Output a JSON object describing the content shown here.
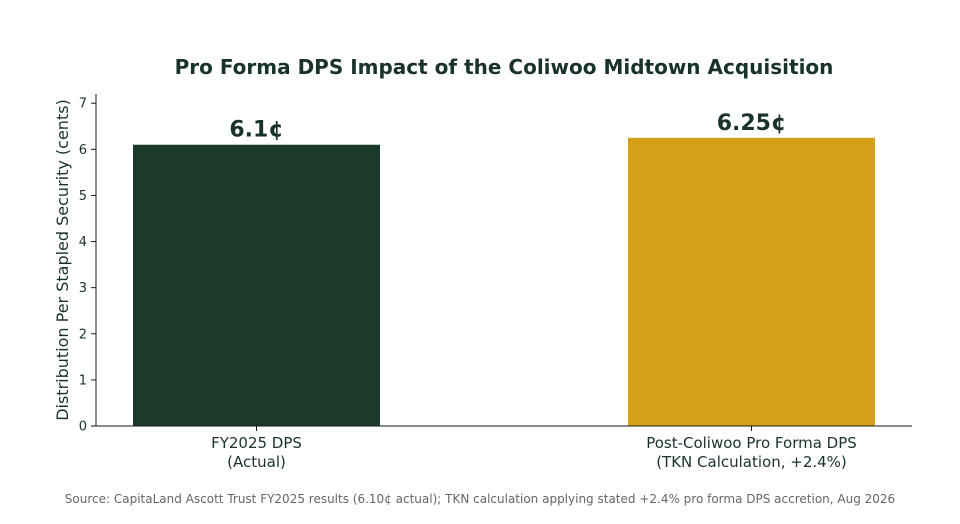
{
  "colors": {
    "text_dark": "#1a3328",
    "axis": "#1a1a1a",
    "bar_1": "#1b3a2a",
    "bar_2": "#d4a017",
    "source_text": "#666666"
  },
  "chart_data": {
    "type": "bar",
    "title": "Pro Forma DPS Impact of the Coliwoo Midtown Acquisition",
    "xlabel": "",
    "ylabel": "Distribution Per Stapled Security (cents)",
    "ylim": [
      0,
      7.2
    ],
    "yticks": [
      0,
      1,
      2,
      3,
      4,
      5,
      6,
      7
    ],
    "grid": false,
    "legend": "none",
    "categories": [
      [
        "FY2025 DPS",
        "(Actual)"
      ],
      [
        "Post-Coliwoo Pro Forma DPS",
        "(TKN Calculation, +2.4%)"
      ]
    ],
    "values": [
      6.1,
      6.25
    ],
    "data_labels": [
      "6.1¢",
      "6.25¢"
    ],
    "bar_colors": [
      "#1b3a2a",
      "#d4a017"
    ]
  },
  "source_note": "Source: CapitaLand Ascott Trust FY2025 results (6.10¢ actual); TKN calculation applying stated +2.4% pro forma DPS accretion, Aug 2026"
}
